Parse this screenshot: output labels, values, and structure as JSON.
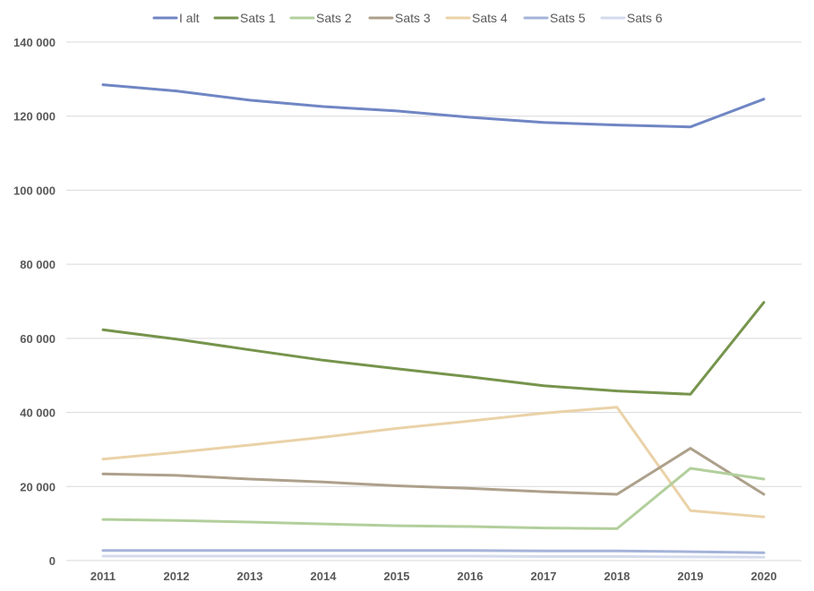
{
  "chart_data": {
    "type": "line",
    "title": "",
    "xlabel": "",
    "ylabel": "",
    "ylim": [
      0,
      140000
    ],
    "yticks": [
      0,
      20000,
      40000,
      60000,
      80000,
      100000,
      120000,
      140000
    ],
    "ytick_labels": [
      "0",
      "20 000",
      "40 000",
      "60 000",
      "80 000",
      "100 000",
      "120 000",
      "140 000"
    ],
    "categories": [
      "2011",
      "2012",
      "2013",
      "2014",
      "2015",
      "2016",
      "2017",
      "2018",
      "2019",
      "2020"
    ],
    "grid": true,
    "legend_position": "top",
    "series": [
      {
        "name": "I alt",
        "color": "#7086c4",
        "values": [
          128500,
          126800,
          124300,
          122600,
          121400,
          119700,
          118300,
          117600,
          117100,
          124600
        ]
      },
      {
        "name": "Sats 1",
        "color": "#76944c",
        "values": [
          62300,
          59800,
          56900,
          54100,
          51800,
          49600,
          47200,
          45800,
          44900,
          69700
        ]
      },
      {
        "name": "Sats 2",
        "color": "#b2cf9c",
        "values": [
          11100,
          10800,
          10400,
          9900,
          9400,
          9200,
          8800,
          8600,
          24900,
          22000
        ]
      },
      {
        "name": "Sats 3",
        "color": "#ada08b",
        "values": [
          23400,
          23000,
          22000,
          21200,
          20200,
          19500,
          18600,
          17900,
          30300,
          17900
        ]
      },
      {
        "name": "Sats 4",
        "color": "#ead2a8",
        "values": [
          27400,
          29200,
          31200,
          33300,
          35700,
          37700,
          39800,
          41400,
          13500,
          11800
        ]
      },
      {
        "name": "Sats 5",
        "color": "#a4b3d9",
        "values": [
          2700,
          2700,
          2700,
          2700,
          2700,
          2700,
          2600,
          2600,
          2400,
          2100
        ]
      },
      {
        "name": "Sats 6",
        "color": "#d4dbec",
        "values": [
          1200,
          1200,
          1200,
          1200,
          1200,
          1200,
          1100,
          1100,
          1000,
          900
        ]
      }
    ]
  }
}
